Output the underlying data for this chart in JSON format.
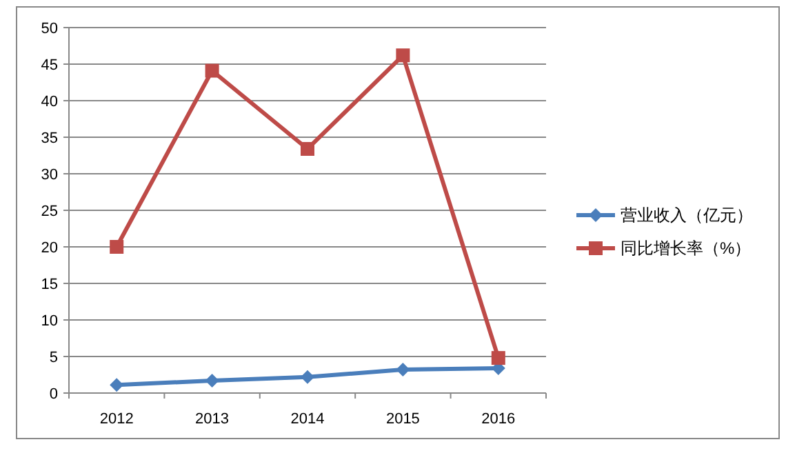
{
  "chart_data": {
    "type": "line",
    "categories": [
      "2012",
      "2013",
      "2014",
      "2015",
      "2016"
    ],
    "series": [
      {
        "name": "营业收入（亿元）",
        "color": "#4a7ebb",
        "marker": "diamond",
        "values": [
          1.1,
          1.7,
          2.2,
          3.2,
          3.4
        ]
      },
      {
        "name": "同比增长率（%）",
        "color": "#be4b48",
        "marker": "square",
        "values": [
          20,
          44.1,
          33.4,
          46.2,
          4.8
        ]
      }
    ],
    "ylim": [
      0,
      50
    ],
    "yticks": [
      0,
      5,
      10,
      15,
      20,
      25,
      30,
      35,
      40,
      45,
      50
    ],
    "grid": "y",
    "legend": "right"
  }
}
